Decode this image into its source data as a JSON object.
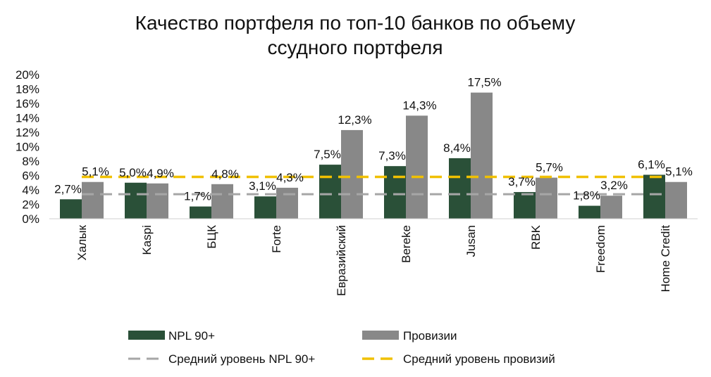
{
  "chart_data": {
    "type": "bar",
    "title_lines": [
      "Качество портфеля по топ-10 банков по объему",
      "ссудного портфеля"
    ],
    "categories": [
      "Халык",
      "Kaspi",
      "БЦК",
      "Forte",
      "Евразийский",
      "Bereke",
      "Jusan",
      "RBK",
      "Freedom",
      "Home Credit"
    ],
    "series": [
      {
        "name": "NPL 90+",
        "color": "#2a5038",
        "values": [
          2.7,
          5.0,
          1.7,
          3.1,
          7.5,
          7.3,
          8.4,
          3.7,
          1.8,
          6.1
        ],
        "labels": [
          "2,7%",
          "5,0%",
          "1,7%",
          "3,1%",
          "7,5%",
          "7,3%",
          "8,4%",
          "3,7%",
          "1,8%",
          "6,1%"
        ]
      },
      {
        "name": "Провизии",
        "color": "#888888",
        "values": [
          5.1,
          4.9,
          4.8,
          4.3,
          12.3,
          14.3,
          17.5,
          5.7,
          3.2,
          5.1
        ],
        "labels": [
          "5,1%",
          "4,9%",
          "4,8%",
          "4,3%",
          "12,3%",
          "14,3%",
          "17,5%",
          "5,7%",
          "3,2%",
          "5,1%"
        ]
      }
    ],
    "reference_lines": [
      {
        "name": "Средний уровень NPL 90+",
        "value": 3.4,
        "color": "#a6a6a6"
      },
      {
        "name": "Средний уровень провизий",
        "value": 5.8,
        "color": "#f0c000"
      }
    ],
    "y_ticks": [
      0,
      2,
      4,
      6,
      8,
      10,
      12,
      14,
      16,
      18,
      20
    ],
    "y_tick_labels": [
      "0%",
      "2%",
      "4%",
      "6%",
      "8%",
      "10%",
      "12%",
      "14%",
      "16%",
      "18%",
      "20%"
    ],
    "ylim": [
      0,
      20
    ],
    "xlabel": "",
    "ylabel": "",
    "grid": false,
    "legend_position": "bottom"
  }
}
